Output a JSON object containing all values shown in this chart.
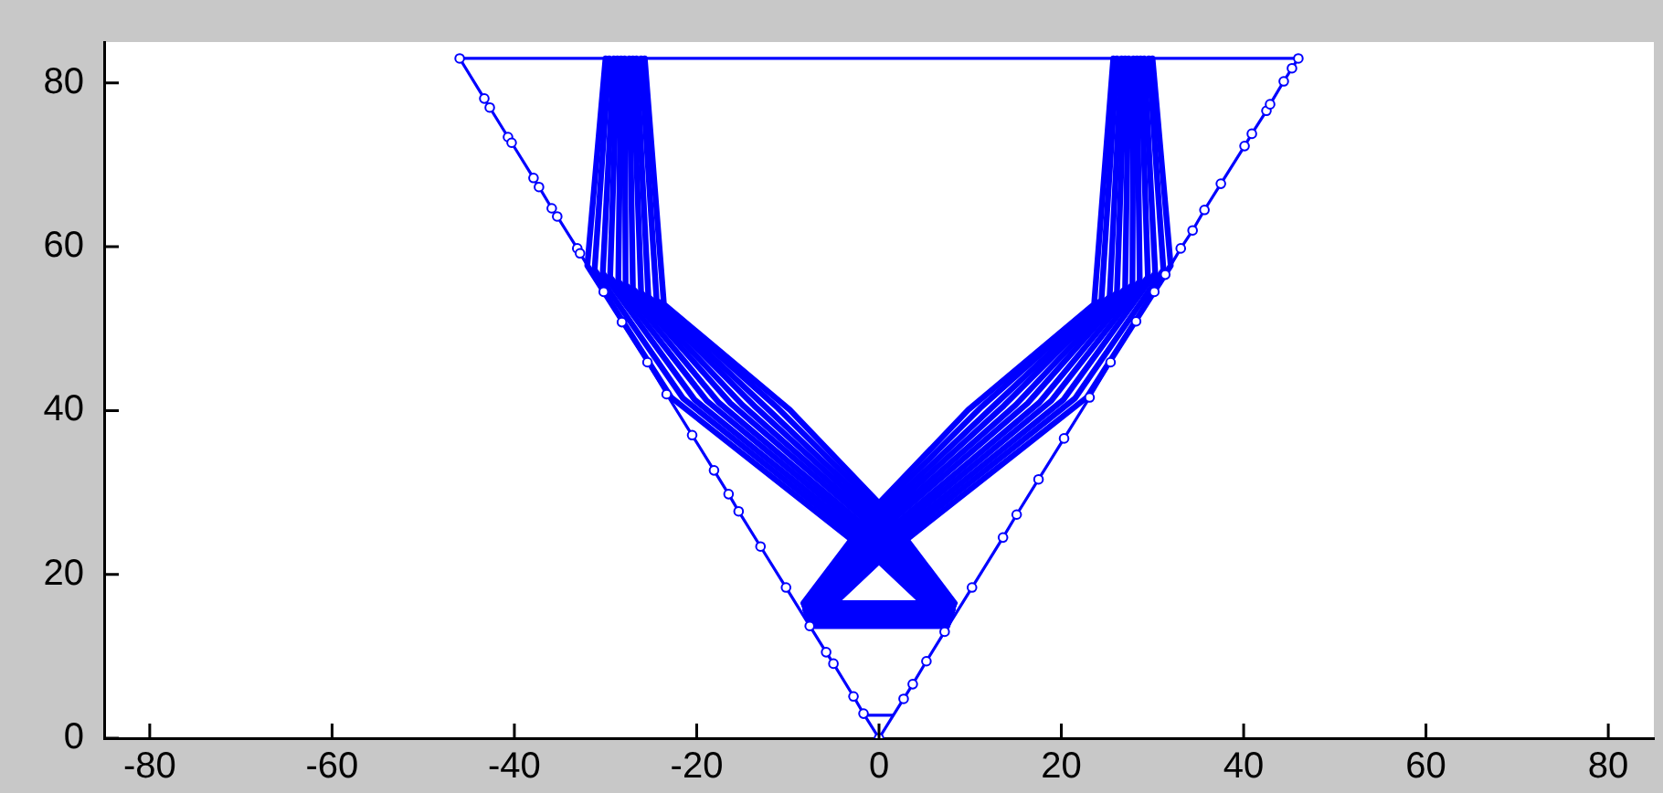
{
  "chart_data": {
    "type": "line",
    "xlim": [
      -85,
      85
    ],
    "ylim": [
      0,
      85
    ],
    "xticks": [
      -80,
      -60,
      -40,
      -20,
      0,
      20,
      40,
      60,
      80
    ],
    "yticks": [
      0,
      20,
      40,
      60,
      80
    ],
    "series": [
      {
        "type": "line",
        "color": "#0000ff",
        "marker": "circle",
        "x": [
          -46,
          -43.3,
          -42.7,
          -40.7,
          -40.3,
          -37.9,
          -37.3,
          -35.9,
          -35.3,
          -33.1,
          -32.8,
          -30.2,
          -28.2,
          -25.4,
          -23.3,
          -20.5,
          -18.1,
          -16.5,
          -15.4,
          -13.0,
          -10.2,
          -7.6,
          -5.8,
          -5.0,
          -2.8,
          -1.7,
          0,
          2.7,
          3.7,
          5.2,
          7.2,
          10.2,
          13.6,
          15.1,
          17.5,
          20.3,
          23.1,
          25.4,
          28.2,
          30.2,
          31.4,
          33.1,
          34.4,
          35.7,
          37.5,
          40.1,
          40.9,
          42.5,
          42.9,
          44.4,
          45.3,
          46
        ],
        "values": [
          83,
          78.1,
          77.0,
          73.4,
          72.7,
          68.4,
          67.3,
          64.7,
          63.7,
          59.8,
          59.2,
          54.5,
          50.8,
          45.9,
          42.0,
          37.0,
          32.7,
          29.8,
          27.7,
          23.4,
          18.4,
          13.7,
          10.5,
          9.1,
          5.1,
          3.0,
          0,
          4.8,
          6.6,
          9.4,
          13.0,
          18.4,
          24.5,
          27.3,
          31.6,
          36.6,
          41.6,
          45.9,
          50.9,
          54.5,
          56.6,
          59.8,
          62.0,
          64.5,
          67.7,
          72.3,
          73.8,
          76.6,
          77.4,
          80.2,
          81.8,
          83
        ]
      },
      {
        "type": "line",
        "color": "#0000ff",
        "x": [
          -46,
          46
        ],
        "values": [
          83,
          83
        ]
      },
      {
        "type": "line",
        "color": "#0000ff",
        "x": [
          -1.5,
          1.5
        ],
        "values": [
          2.8,
          2.8
        ]
      },
      {
        "type": "line",
        "color": "#0000ff",
        "x": [
          -30,
          -32,
          -22.8,
          0,
          7.5,
          -7.5,
          0,
          22.8,
          32,
          30
        ],
        "values": [
          83,
          57.7,
          41.6,
          21.6,
          13.7,
          13.7,
          21.6,
          41.6,
          57.7,
          83
        ]
      },
      {
        "type": "line",
        "color": "#0000ff",
        "x": [
          -29.6,
          -31.2,
          -21.5,
          0,
          7.6,
          -7.6,
          0,
          21.5,
          31.2,
          29.6
        ],
        "values": [
          83,
          57.2,
          41.5,
          22.3,
          14.0,
          14.0,
          22.3,
          41.5,
          57.2,
          83
        ]
      },
      {
        "type": "line",
        "color": "#0000ff",
        "x": [
          -29.1,
          -30.3,
          -20.2,
          0,
          7.7,
          -7.7,
          0,
          20.2,
          30.3,
          29.1
        ],
        "values": [
          83,
          56.8,
          41.3,
          23.0,
          14.3,
          14.3,
          23.0,
          41.3,
          56.8,
          83
        ]
      },
      {
        "type": "line",
        "color": "#0000ff",
        "x": [
          -28.7,
          -29.5,
          -18.9,
          0,
          7.7,
          -7.7,
          0,
          18.9,
          29.5,
          28.7
        ],
        "values": [
          83,
          56.3,
          41.2,
          23.7,
          14.5,
          14.5,
          23.7,
          41.2,
          56.3,
          83
        ]
      },
      {
        "type": "line",
        "color": "#0000ff",
        "x": [
          -28.3,
          -28.6,
          -17.6,
          0,
          7.8,
          -7.8,
          0,
          17.6,
          28.6,
          28.3
        ],
        "values": [
          83,
          55.8,
          41.0,
          24.4,
          14.8,
          14.8,
          24.4,
          41.0,
          55.8,
          83
        ]
      },
      {
        "type": "line",
        "color": "#0000ff",
        "x": [
          -27.9,
          -27.8,
          -16.3,
          0,
          7.9,
          -7.9,
          0,
          16.3,
          27.8,
          27.9
        ],
        "values": [
          83,
          55.4,
          40.9,
          25.2,
          15.1,
          15.1,
          25.2,
          40.9,
          55.4,
          83
        ]
      },
      {
        "type": "line",
        "color": "#0000ff",
        "x": [
          -27.4,
          -27.0,
          -15.0,
          0,
          8.0,
          -8.0,
          0,
          15.0,
          27.0,
          27.4
        ],
        "values": [
          83,
          54.9,
          40.7,
          25.9,
          15.4,
          15.4,
          25.9,
          40.7,
          54.9,
          83
        ]
      },
      {
        "type": "line",
        "color": "#0000ff",
        "x": [
          -27.0,
          -26.1,
          -13.7,
          0,
          8.1,
          -8.1,
          0,
          13.7,
          26.1,
          27.0
        ],
        "values": [
          83,
          54.4,
          40.6,
          26.6,
          15.7,
          15.7,
          26.6,
          40.6,
          54.4,
          83
        ]
      },
      {
        "type": "line",
        "color": "#0000ff",
        "x": [
          -26.6,
          -25.3,
          -12.4,
          0,
          8.1,
          -8.1,
          0,
          12.4,
          25.3,
          26.6
        ],
        "values": [
          83,
          53.9,
          40.4,
          27.3,
          15.9,
          15.9,
          27.3,
          40.4,
          53.9,
          83
        ]
      },
      {
        "type": "line",
        "color": "#0000ff",
        "x": [
          -26.1,
          -24.4,
          -11.1,
          0,
          8.2,
          -8.2,
          0,
          11.1,
          24.4,
          26.1
        ],
        "values": [
          83,
          53.5,
          40.3,
          28.0,
          16.2,
          16.2,
          28.0,
          40.3,
          53.5,
          83
        ]
      },
      {
        "type": "line",
        "color": "#0000ff",
        "x": [
          -25.7,
          -23.6,
          -9.8,
          0,
          8.3,
          -8.3,
          0,
          9.8,
          23.6,
          25.7
        ],
        "values": [
          83,
          53.0,
          40.1,
          28.7,
          16.5,
          16.5,
          28.7,
          40.1,
          53.0,
          83
        ]
      }
    ]
  }
}
